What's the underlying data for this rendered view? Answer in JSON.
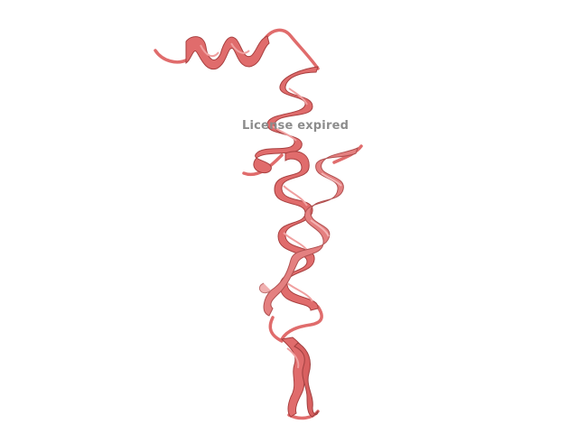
{
  "viewer": {
    "watermark_text": "License expired",
    "background_color": "#ffffff",
    "ribbon_color": "#e06c6c",
    "ribbon_dark_color": "#b84848",
    "ribbon_light_color": "#f0a0a0",
    "watermark_color": "#8c8c8c"
  }
}
